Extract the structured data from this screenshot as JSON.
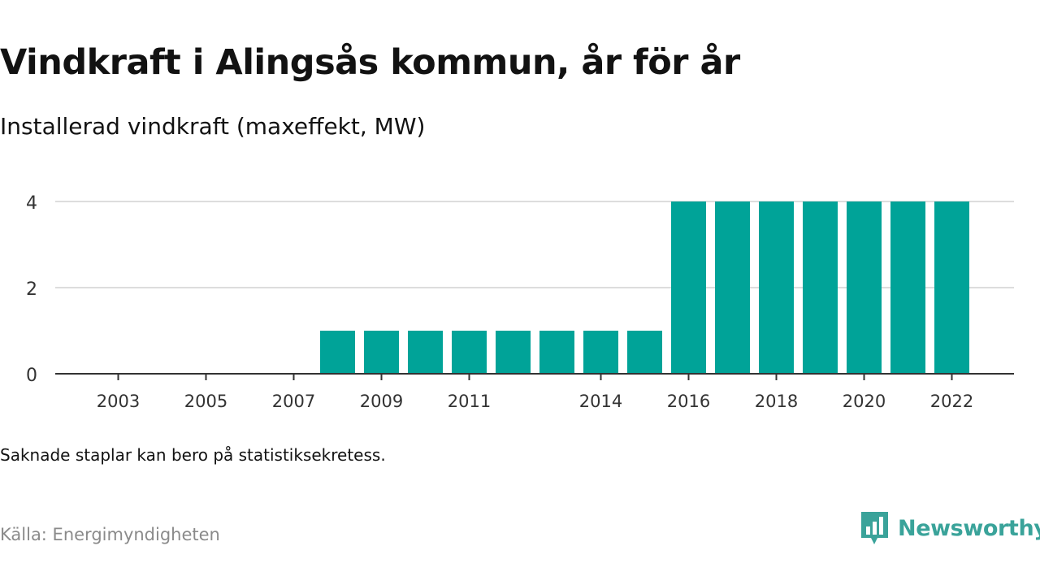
{
  "header": {
    "title": "Vindkraft i Alingsås kommun, år för år",
    "subtitle": "Installerad vindkraft (maxeffekt, MW)"
  },
  "footer": {
    "note": "Saknade staplar kan bero på statistiksekretess.",
    "source": "Källa: Energimyndigheten",
    "brand": "Newsworthy"
  },
  "colors": {
    "bar": "#00a398",
    "grid": "#dddddd",
    "axis": "#333333",
    "brand": "#3aa39a",
    "source": "#8a8a8a"
  },
  "chart_data": {
    "type": "bar",
    "title": "Vindkraft i Alingsås kommun, år för år",
    "subtitle": "Installerad vindkraft (maxeffekt, MW)",
    "xlabel": "",
    "ylabel": "",
    "ylim": [
      0,
      4
    ],
    "yticks": [
      0,
      2,
      4
    ],
    "grid": true,
    "legend": "none",
    "categories": [
      "2003",
      "2004",
      "2005",
      "2006",
      "2007",
      "2008",
      "2009",
      "2010",
      "2011",
      "2012",
      "2013",
      "2014",
      "2015",
      "2016",
      "2017",
      "2018",
      "2019",
      "2020",
      "2021",
      "2022"
    ],
    "xtick_labels": [
      "2003",
      "2005",
      "2007",
      "2009",
      "2011",
      "2014",
      "2016",
      "2018",
      "2020",
      "2022"
    ],
    "series": [
      {
        "values": [
          0,
          0,
          0,
          0,
          0,
          1,
          1,
          1,
          1,
          1,
          1,
          1,
          1,
          4,
          4,
          4,
          4,
          4,
          4,
          4
        ]
      }
    ]
  }
}
